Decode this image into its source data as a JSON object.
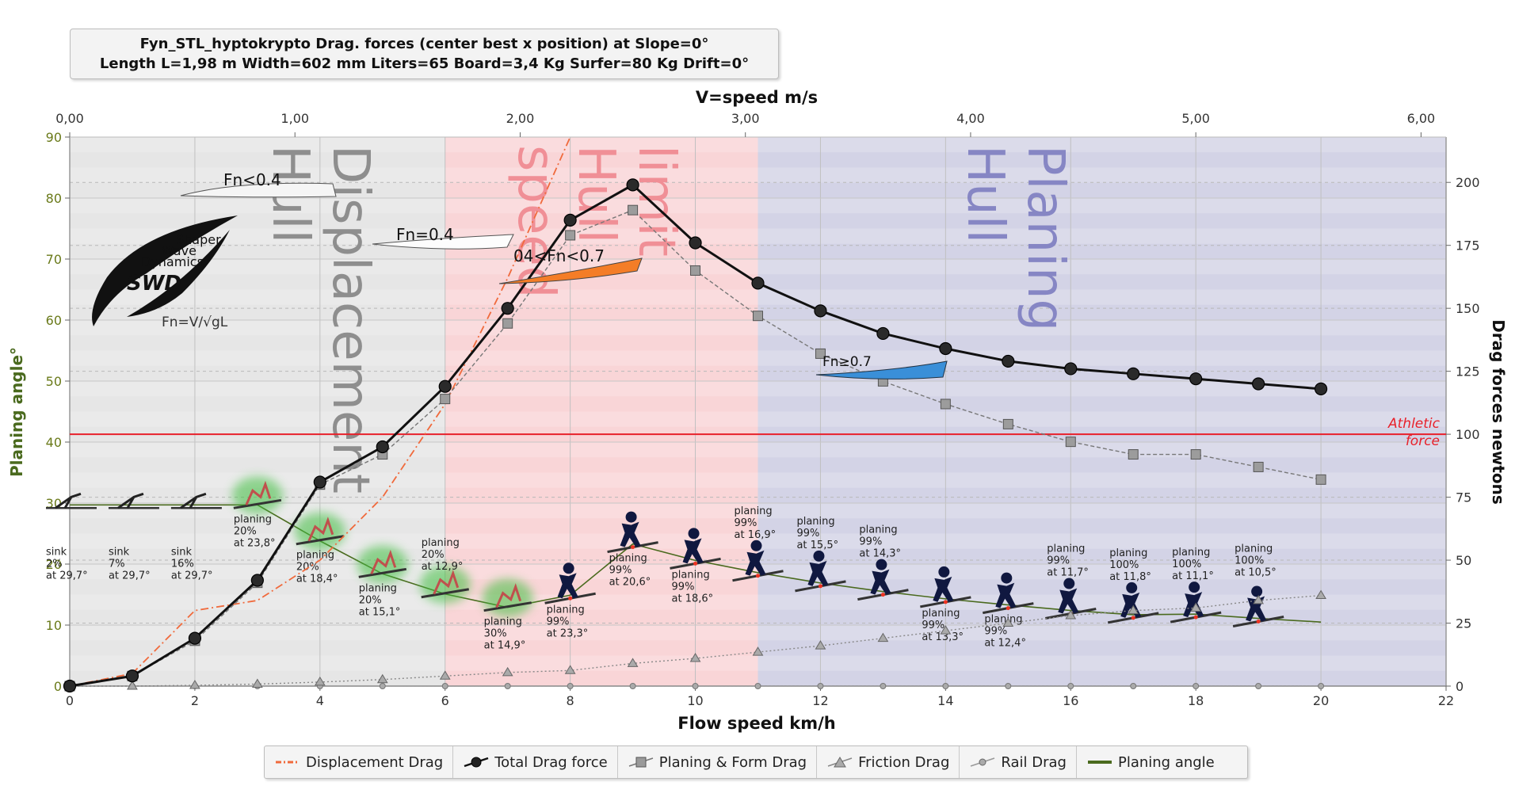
{
  "title": {
    "line1": "Fyn_STL_hyptokrypto Drag. forces (center best x position) at  Slope=0°",
    "line2": "Length L=1,98 m Width=602 mm Liters=65 Board=3,4 Kg Surfer=80 Kg Drift=0°"
  },
  "chart_data": {
    "type": "line",
    "title": "Fyn_STL_hyptokrypto Drag. forces (center best x position) at  Slope=0°",
    "subtitle": "Length L=1,98 m Width=602 mm Liters=65 Board=3,4 Kg Surfer=80 Kg Drift=0°",
    "xlabel": "Flow speed km/h",
    "x_ticks": [
      "0",
      "2",
      "4",
      "6",
      "8",
      "10",
      "12",
      "14",
      "16",
      "18",
      "20",
      "22"
    ],
    "xlim": [
      0,
      22
    ],
    "top_axis": {
      "label": "V=speed m/s",
      "ticks": [
        "0,00",
        "1,00",
        "2,00",
        "3,00",
        "4,00",
        "5,00",
        "6,00"
      ]
    },
    "ylabel_left": "Planing angle°",
    "ylim_left": [
      0,
      90
    ],
    "y_ticks_left": [
      "0",
      "10",
      "20",
      "30",
      "40",
      "50",
      "60",
      "70",
      "80",
      "90"
    ],
    "ylabel_right": "Drag forces newtons",
    "ylim_right": [
      0,
      218
    ],
    "y_ticks_right": [
      "0",
      "25",
      "50",
      "75",
      "100",
      "125",
      "150",
      "175",
      "200"
    ],
    "athletic_force": {
      "value": 100,
      "label_line1": "Athletic",
      "label_line2": "force",
      "color": "#e8202a"
    },
    "regions": [
      {
        "label_line1": "Displacement",
        "label_line2": "Hull",
        "x_start": 0,
        "x_end": 6,
        "color": "#e6e6e6",
        "text_color": "#8e8e8e"
      },
      {
        "label_line1": "limit",
        "label_line2": "Hull",
        "label_line3": "speed",
        "x_start": 6,
        "x_end": 11,
        "color": "#f9d5d7",
        "text_color": "#f08f96"
      },
      {
        "label_line1": "Planing",
        "label_line2": "Hull",
        "x_start": 11,
        "x_end": 22,
        "color": "#d3d3e6",
        "text_color": "#8686c4"
      }
    ],
    "froude_labels": [
      "Fn<0.4",
      "Fn=0.4",
      "04<Fn<0.7",
      "Fn≥0.7"
    ],
    "series": [
      {
        "name": "Displacement Drag",
        "axis": "right",
        "color": "#f06a3c",
        "style": "dash-dot",
        "x": [
          0,
          1,
          2,
          3,
          4,
          5,
          6,
          7,
          8
        ],
        "values": [
          0,
          5,
          30,
          34,
          50,
          75,
          112,
          162,
          218
        ]
      },
      {
        "name": "Total Drag force",
        "axis": "right",
        "color": "#111111",
        "style": "solid-circle",
        "x": [
          0,
          1,
          2,
          3,
          4,
          5,
          6,
          7,
          8,
          9,
          10,
          11,
          12,
          13,
          14,
          15,
          16,
          17,
          18,
          19,
          20
        ],
        "values": [
          0,
          4,
          19,
          42,
          81,
          95,
          119,
          150,
          185,
          199,
          176,
          160,
          149,
          140,
          134,
          129,
          126,
          124,
          122,
          120,
          118
        ]
      },
      {
        "name": "Planing & Form Drag",
        "axis": "right",
        "color": "#777777",
        "style": "dash-square",
        "x": [
          0,
          1,
          2,
          3,
          4,
          5,
          6,
          7,
          8,
          9,
          10,
          11,
          12,
          13,
          14,
          15,
          16,
          17,
          18,
          19,
          20
        ],
        "values": [
          0,
          4,
          18,
          41,
          80,
          92,
          114,
          144,
          179,
          189,
          165,
          147,
          132,
          121,
          112,
          104,
          97,
          92,
          92,
          87,
          82
        ]
      },
      {
        "name": "Friction Drag",
        "axis": "right",
        "color": "#888888",
        "style": "dot-triangle",
        "x": [
          0,
          1,
          2,
          3,
          4,
          5,
          6,
          7,
          8,
          9,
          10,
          11,
          12,
          13,
          14,
          15,
          16,
          17,
          18,
          19,
          20
        ],
        "values": [
          0,
          0,
          0.3,
          0.8,
          1.6,
          2.6,
          4,
          5.4,
          6.2,
          9,
          11,
          13.5,
          16,
          19,
          22,
          25,
          28,
          30,
          31,
          34,
          36
        ]
      },
      {
        "name": "Rail Drag",
        "axis": "right",
        "color": "#999999",
        "style": "dot-circle",
        "x": [
          0,
          1,
          2,
          3,
          4,
          5,
          6,
          7,
          8,
          9,
          10,
          11,
          12,
          13,
          14,
          15,
          16,
          17,
          18,
          19,
          20
        ],
        "values": [
          0,
          0,
          0,
          0,
          0,
          0,
          0,
          0,
          0,
          0,
          0,
          0,
          0,
          0,
          0,
          0,
          0,
          0,
          0,
          0,
          0
        ]
      },
      {
        "name": "Planing angle",
        "axis": "left",
        "color": "#4a6a1e",
        "style": "solid",
        "x": [
          0,
          1,
          2,
          3,
          4,
          5,
          6,
          7,
          8,
          9,
          10,
          11,
          12,
          13,
          14,
          15,
          16,
          17,
          18,
          19,
          20
        ],
        "values": [
          29.7,
          29.7,
          29.7,
          29.7,
          23.8,
          18.4,
          15.1,
          12.9,
          14.9,
          23.3,
          20.6,
          18.6,
          16.9,
          15.5,
          14.3,
          13.3,
          12.4,
          11.7,
          11.8,
          11.1,
          10.5
        ]
      }
    ],
    "annotations": [
      {
        "x": 1,
        "lines": [
          "sink",
          "2%",
          "at 29,7°"
        ]
      },
      {
        "x": 2,
        "lines": [
          "sink",
          "7%",
          "at 29,7°"
        ]
      },
      {
        "x": 3,
        "lines": [
          "sink",
          "16%",
          "at 29,7°"
        ]
      },
      {
        "x": 4,
        "lines": [
          "planing",
          "20%",
          "at 23,8°"
        ]
      },
      {
        "x": 5,
        "lines": [
          "planing",
          "20%",
          "at 18,4°"
        ]
      },
      {
        "x": 6,
        "lines": [
          "planing",
          "20%",
          "at 15,1°"
        ]
      },
      {
        "x": 7,
        "lines": [
          "planing",
          "20%",
          "at 12,9°"
        ]
      },
      {
        "x": 8,
        "lines": [
          "planing",
          "30%",
          "at 14,9°"
        ]
      },
      {
        "x": 9,
        "lines": [
          "planing",
          "99%",
          "at 23,3°"
        ]
      },
      {
        "x": 10,
        "lines": [
          "planing",
          "99%",
          "at 20,6°"
        ]
      },
      {
        "x": 11,
        "lines": [
          "planing",
          "99%",
          "at 18,6°"
        ]
      },
      {
        "x": 12,
        "lines": [
          "planing",
          "99%",
          "at 16,9°"
        ]
      },
      {
        "x": 13,
        "lines": [
          "planing",
          "99%",
          "at 15,5°"
        ]
      },
      {
        "x": 14,
        "lines": [
          "planing",
          "99%",
          "at 14,3°"
        ]
      },
      {
        "x": 15,
        "lines": [
          "planing",
          "99%",
          "at 13,3°"
        ]
      },
      {
        "x": 16,
        "lines": [
          "planing",
          "99%",
          "at 12,4°"
        ]
      },
      {
        "x": 17,
        "lines": [
          "planing",
          "99%",
          "at 11,7°"
        ]
      },
      {
        "x": 18,
        "lines": [
          "planing",
          "100%",
          "at 11,8°"
        ]
      },
      {
        "x": 19,
        "lines": [
          "planing",
          "100%",
          "at 11,1°"
        ]
      },
      {
        "x": 20,
        "lines": [
          "planing",
          "100%",
          "at 10,5°"
        ]
      }
    ],
    "logo": {
      "line1": "Shaper",
      "line2": "Wave",
      "line3": "Dynamics",
      "mark": "SWD",
      "formula": "Fn=V/√gL"
    },
    "legend_placement": "bottom-center",
    "grid": true
  },
  "legend": [
    {
      "label": "Displacement Drag",
      "icon": "dash-dot-line-icon",
      "color": "#f06a3c"
    },
    {
      "label": "Total Drag force",
      "icon": "circle-line-icon",
      "color": "#111111"
    },
    {
      "label": "Planing & Form Drag",
      "icon": "square-line-icon",
      "color": "#777777"
    },
    {
      "label": "Friction Drag",
      "icon": "triangle-line-icon",
      "color": "#888888"
    },
    {
      "label": "Rail Drag",
      "icon": "dot-line-icon",
      "color": "#999999"
    },
    {
      "label": "Planing angle",
      "icon": "solid-line-icon",
      "color": "#4a6a1e"
    }
  ]
}
